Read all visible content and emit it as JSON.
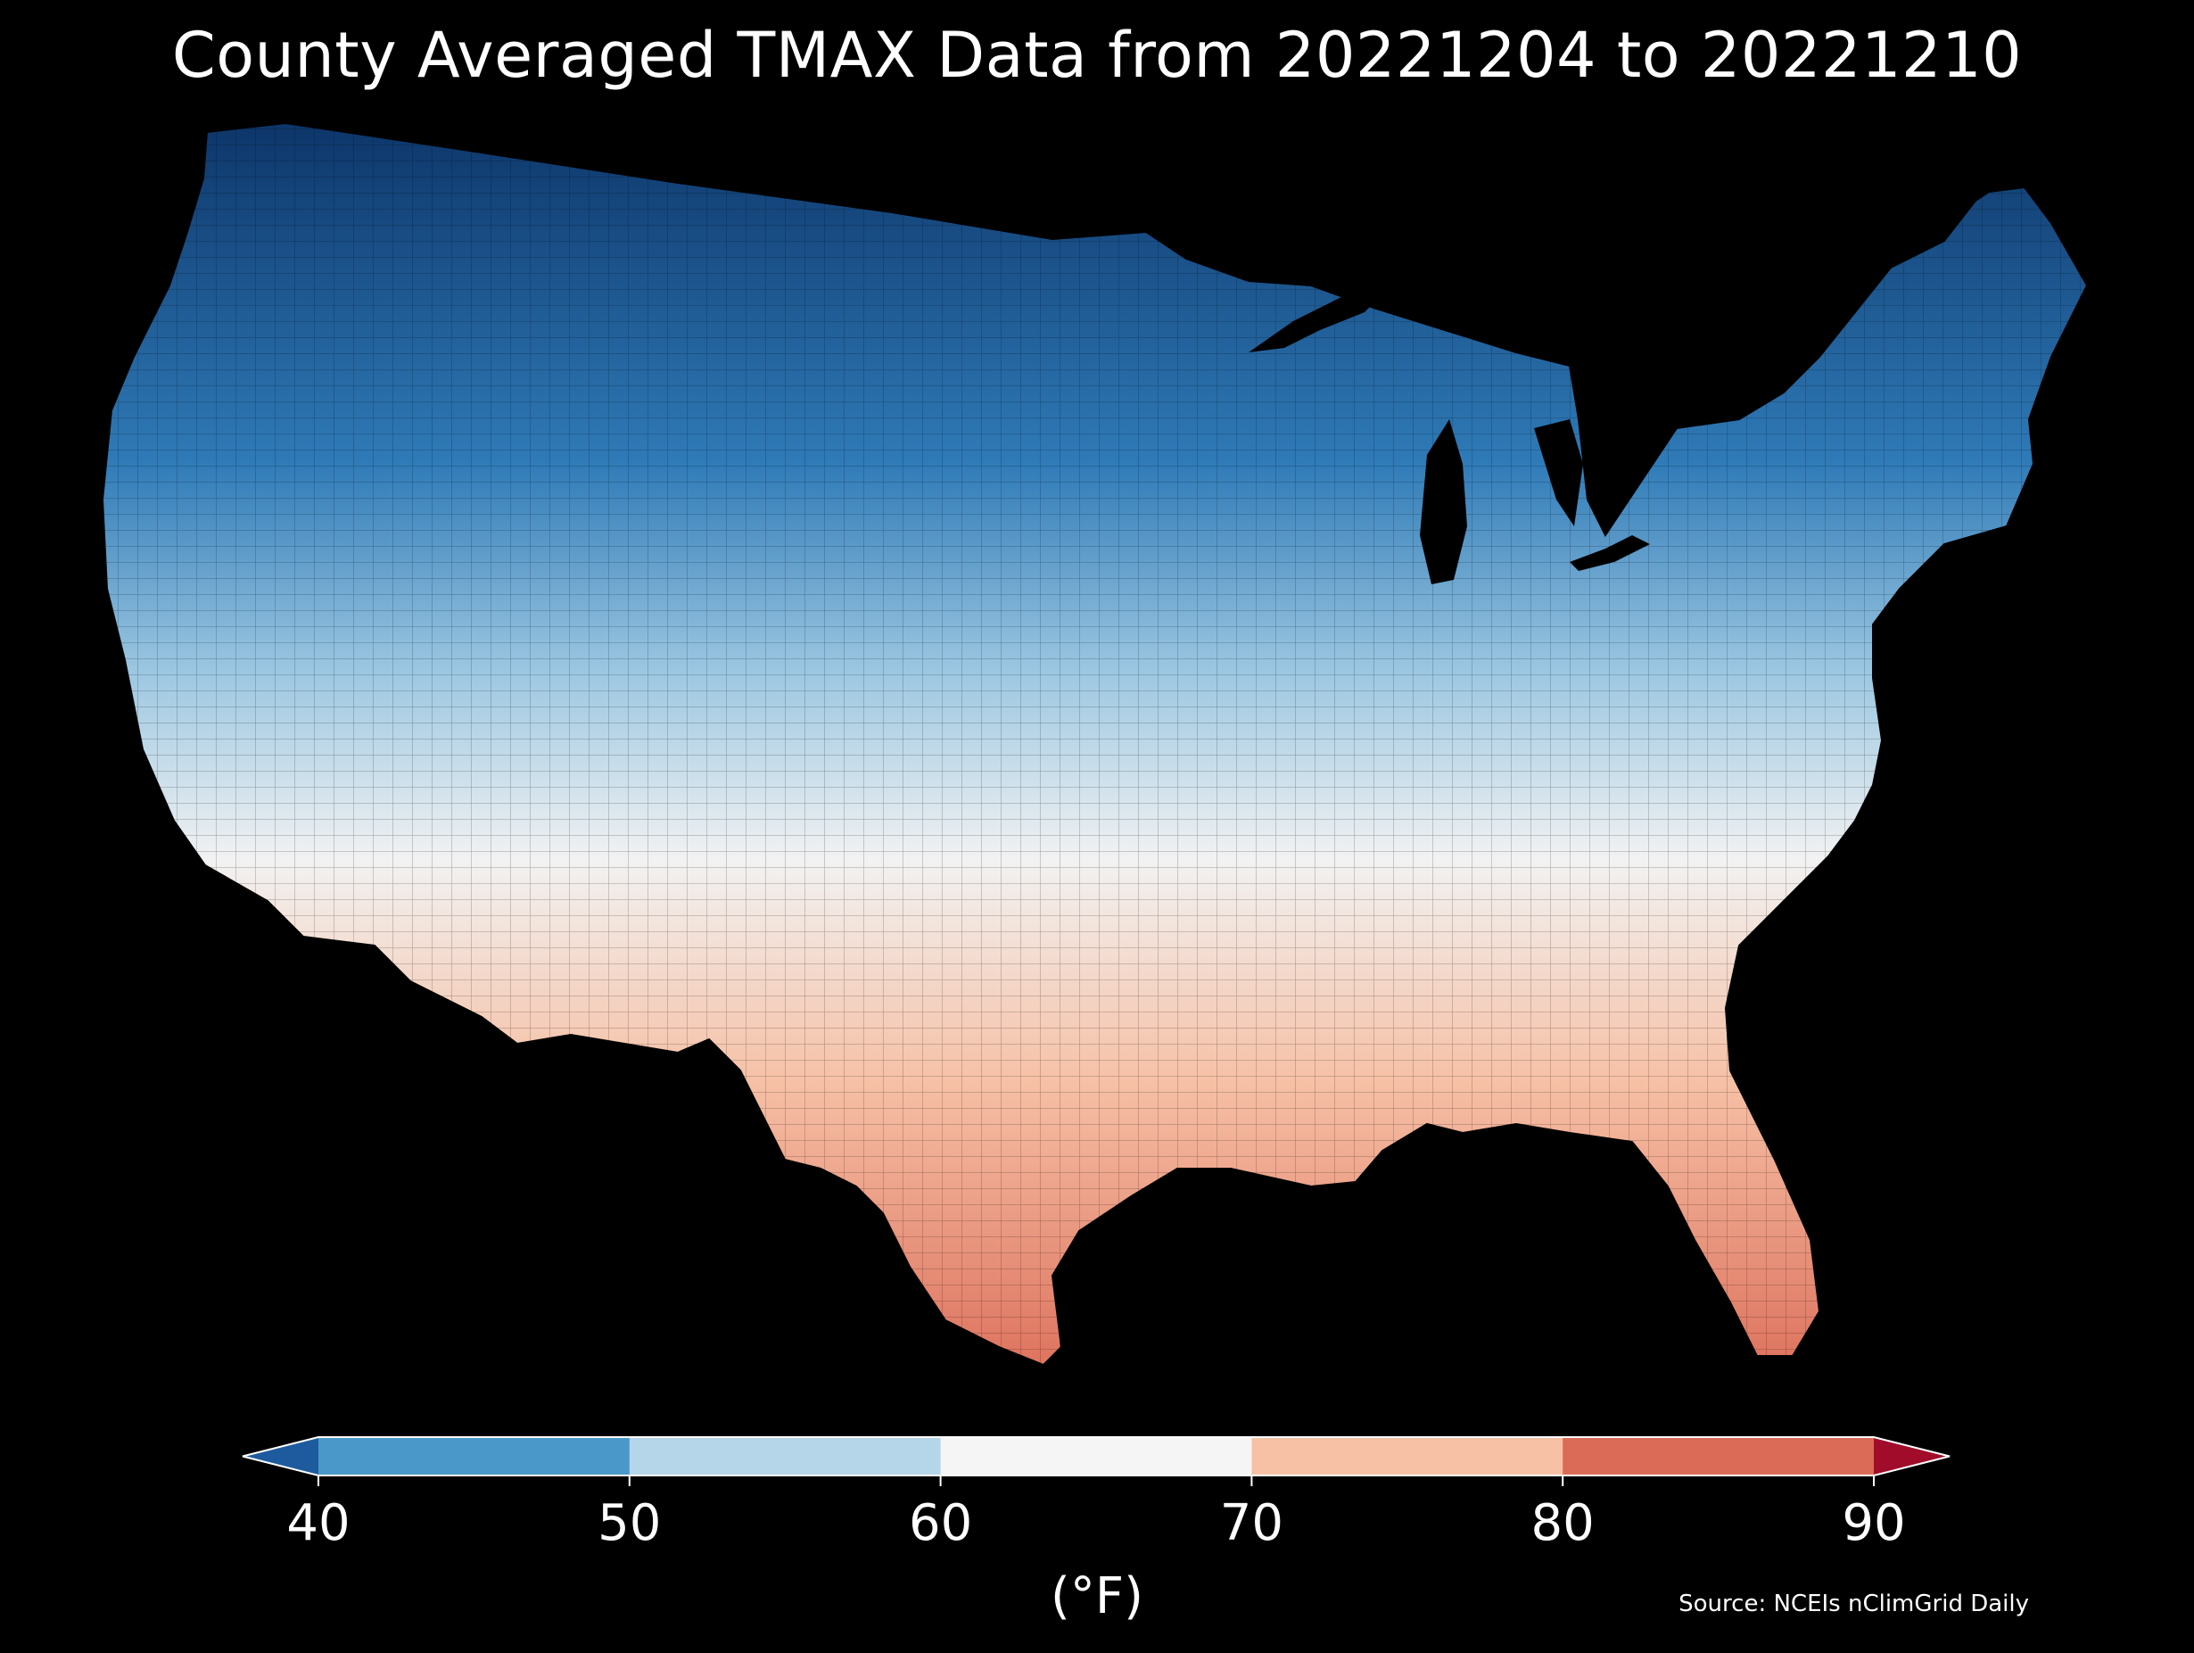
{
  "title": "County Averaged TMAX Data from 20221204 to 20221210",
  "source": "Source: NCEIs nClimGrid Daily",
  "colorbar": {
    "unit": "(°F)",
    "ticks": [
      "40",
      "50",
      "60",
      "70",
      "80",
      "90"
    ],
    "segments": [
      {
        "range": "<40",
        "color": "#1e5b9e"
      },
      {
        "range": "40-50",
        "color": "#4a98c9"
      },
      {
        "range": "50-60",
        "color": "#b5d5e9"
      },
      {
        "range": "60-70",
        "color": "#f5f5f5"
      },
      {
        "range": "70-80",
        "color": "#f7c1a6"
      },
      {
        "range": "80-90",
        "color": "#db6b56"
      },
      {
        "range": ">90",
        "color": "#a10c2a"
      }
    ]
  },
  "map": {
    "region": "Contiguous United States",
    "variable": "TMAX",
    "gradient": {
      "north": "#0c3468",
      "north_mid": "#2f7bb8",
      "middle": "#9dc8e2",
      "central": "#f2f2f2",
      "south_mid": "#f6c0a5",
      "south": "#df7661"
    }
  }
}
